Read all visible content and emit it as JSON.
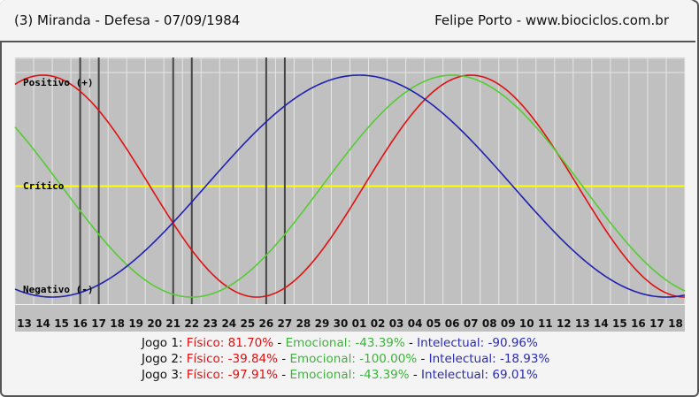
{
  "header": {
    "left": "(3)  Miranda - Defesa -  07/09/1984",
    "right": "Felipe Porto  -  www.biociclos.com.br"
  },
  "annotations": {
    "positive": "Positivo (+)",
    "critical": "Crítico",
    "negative": "Negativo (-)"
  },
  "legend": [
    {
      "label": "Jogo 1:",
      "fisico": "Físico: 81.70%",
      "emocional": "Emocional: -43.39%",
      "intelectual": "Intelectual: -90.96%",
      "sep": " - "
    },
    {
      "label": "Jogo 2:",
      "fisico": "Físico: -39.84%",
      "emocional": "Emocional: -100.00%",
      "intelectual": "Intelectual: -18.93%",
      "sep": " - "
    },
    {
      "label": "Jogo 3:",
      "fisico": "Físico: -97.91%",
      "emocional": "Emocional: -43.39%",
      "intelectual": "Intelectual: 69.01%",
      "sep": " - "
    }
  ],
  "colors": {
    "fisico": "#e01010",
    "emocional": "#55cc33",
    "intelectual": "#2020b0",
    "critical": "#ffff00",
    "plot_bg": "#c0c0c0",
    "grid": "#e6e6e6",
    "marker": "#444444"
  },
  "chart_data": {
    "type": "line",
    "x_ticks": [
      "13",
      "14",
      "15",
      "16",
      "17",
      "18",
      "19",
      "20",
      "21",
      "22",
      "23",
      "24",
      "25",
      "26",
      "27",
      "28",
      "29",
      "30",
      "01",
      "02",
      "03",
      "04",
      "05",
      "06",
      "07",
      "08",
      "09",
      "10",
      "11",
      "12",
      "13",
      "14",
      "15",
      "16",
      "17",
      "18"
    ],
    "ylim": [
      -100,
      100
    ],
    "series": [
      {
        "key": "fisico",
        "period": 23,
        "phase_peak_index": 1.0
      },
      {
        "key": "emocional",
        "period": 28,
        "phase_peak_index": 23.0
      },
      {
        "key": "intelectual",
        "period": 33,
        "phase_peak_index": 18.0
      }
    ],
    "markers": [
      {
        "name": "Jogo 1",
        "indices": [
          3.5,
          4.5
        ]
      },
      {
        "name": "Jogo 2",
        "indices": [
          8.5,
          9.5
        ]
      },
      {
        "name": "Jogo 3",
        "indices": [
          13.5,
          14.5
        ]
      }
    ]
  }
}
